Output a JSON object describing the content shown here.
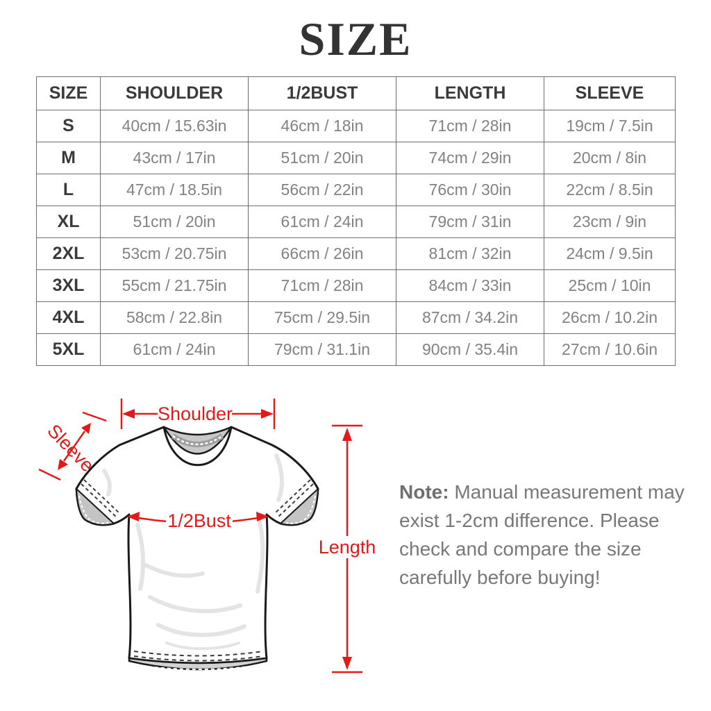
{
  "title": "SIZE",
  "table": {
    "columns": [
      "SIZE",
      "SHOULDER",
      "1/2BUST",
      "LENGTH",
      "SLEEVE"
    ],
    "rows": [
      [
        "S",
        "40cm / 15.63in",
        "46cm / 18in",
        "71cm / 28in",
        "19cm / 7.5in"
      ],
      [
        "M",
        "43cm / 17in",
        "51cm / 20in",
        "74cm / 29in",
        "20cm / 8in"
      ],
      [
        "L",
        "47cm / 18.5in",
        "56cm / 22in",
        "76cm / 30in",
        "22cm / 8.5in"
      ],
      [
        "XL",
        "51cm / 20in",
        "61cm / 24in",
        "79cm / 31in",
        "23cm / 9in"
      ],
      [
        "2XL",
        "53cm / 20.75in",
        "66cm / 26in",
        "81cm / 32in",
        "24cm / 9.5in"
      ],
      [
        "3XL",
        "55cm / 21.75in",
        "71cm / 28in",
        "84cm / 33in",
        "25cm / 10in"
      ],
      [
        "4XL",
        "58cm / 22.8in",
        "75cm / 29.5in",
        "87cm / 34.2in",
        "26cm / 10.2in"
      ],
      [
        "5XL",
        "61cm / 24in",
        "79cm / 31.1in",
        "90cm / 35.4in",
        "27cm / 10.6in"
      ]
    ]
  },
  "diagram": {
    "labels": {
      "shoulder": "Shoulder",
      "sleeve": "Sleeve",
      "bust": "1/2Bust",
      "length": "Length"
    }
  },
  "note": {
    "label": "Note:",
    "line1": " Manual measurement may",
    "line2": "exist 1-2cm difference. Please",
    "line3": "check and compare the size",
    "line4": "carefully before buying!"
  },
  "colors": {
    "accent_red": "#e61919",
    "value_gray": "#828282",
    "heading_dark": "#333333",
    "garment_gray": "#c8c8c8"
  }
}
